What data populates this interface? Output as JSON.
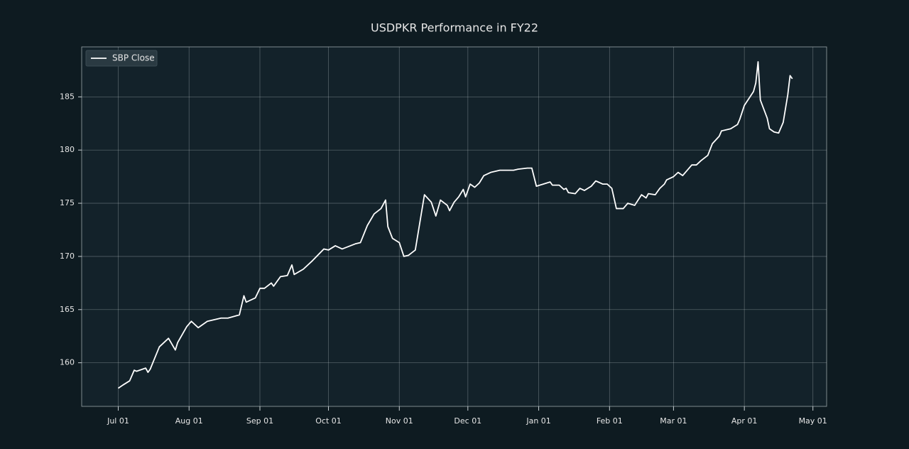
{
  "chart_data": {
    "type": "line",
    "title": "USDPKR Performance in FY22",
    "x": [
      "07-01",
      "07-03",
      "07-06",
      "07-08",
      "07-09",
      "07-13",
      "07-14",
      "07-15",
      "07-19",
      "07-23",
      "07-26",
      "07-27",
      "07-31",
      "08-02",
      "08-05",
      "08-09",
      "08-11",
      "08-15",
      "08-18",
      "08-23",
      "08-25",
      "08-26",
      "08-30",
      "09-01",
      "09-03",
      "09-06",
      "09-07",
      "09-10",
      "09-13",
      "09-15",
      "09-16",
      "09-20",
      "09-24",
      "09-29",
      "10-01",
      "10-04",
      "10-07",
      "10-13",
      "10-15",
      "10-18",
      "10-21",
      "10-24",
      "10-26",
      "10-27",
      "10-29",
      "11-01",
      "11-03",
      "11-05",
      "11-08",
      "11-12",
      "11-15",
      "11-17",
      "11-19",
      "11-22",
      "11-23",
      "11-25",
      "11-27",
      "11-29",
      "11-30",
      "12-02",
      "12-04",
      "12-06",
      "12-08",
      "12-11",
      "12-15",
      "12-21",
      "12-23",
      "12-27",
      "12-29",
      "12-31",
      "01-03",
      "01-06",
      "01-07",
      "01-10",
      "01-12",
      "01-13",
      "01-14",
      "01-17",
      "01-19",
      "01-21",
      "01-24",
      "01-26",
      "01-29",
      "01-31",
      "02-02",
      "02-04",
      "02-07",
      "02-09",
      "02-12",
      "02-15",
      "02-17",
      "02-18",
      "02-21",
      "02-23",
      "02-25",
      "02-26",
      "03-01",
      "03-03",
      "03-05",
      "03-07",
      "03-09",
      "03-11",
      "03-13",
      "03-16",
      "03-18",
      "03-21",
      "03-22",
      "03-26",
      "03-29",
      "03-30",
      "04-01",
      "04-05",
      "04-06",
      "04-07",
      "04-08",
      "04-11",
      "04-12",
      "04-14",
      "04-16",
      "04-18",
      "04-20",
      "04-21",
      "04-22"
    ],
    "series": [
      {
        "name": "SBP Close",
        "color": "#ffffff",
        "values": [
          157.6,
          157.9,
          158.3,
          159.3,
          159.2,
          159.5,
          159.1,
          159.4,
          161.5,
          162.3,
          161.2,
          161.9,
          163.4,
          163.9,
          163.3,
          163.9,
          164.0,
          164.2,
          164.2,
          164.5,
          166.3,
          165.7,
          166.1,
          167.0,
          167.0,
          167.5,
          167.2,
          168.1,
          168.2,
          169.2,
          168.3,
          168.8,
          169.6,
          170.7,
          170.6,
          171.0,
          170.7,
          171.2,
          171.3,
          172.9,
          174.0,
          174.5,
          175.3,
          172.8,
          171.7,
          171.3,
          170.0,
          170.1,
          170.6,
          175.8,
          175.1,
          173.8,
          175.3,
          174.8,
          174.3,
          175.1,
          175.6,
          176.3,
          175.6,
          176.8,
          176.5,
          176.9,
          177.6,
          177.9,
          178.1,
          178.1,
          178.2,
          178.3,
          178.3,
          176.6,
          176.8,
          177.0,
          176.7,
          176.7,
          176.3,
          176.4,
          176.0,
          175.9,
          176.4,
          176.2,
          176.6,
          177.1,
          176.8,
          176.8,
          176.4,
          174.5,
          174.5,
          175.0,
          174.8,
          175.8,
          175.5,
          175.9,
          175.8,
          176.4,
          176.8,
          177.2,
          177.5,
          177.9,
          177.6,
          178.1,
          178.6,
          178.6,
          179.0,
          179.5,
          180.6,
          181.3,
          181.8,
          182.0,
          182.4,
          182.9,
          184.2,
          185.5,
          186.3,
          188.3,
          184.7,
          183.0,
          182.0,
          181.7,
          181.6,
          182.6,
          185.2,
          187.0,
          186.7
        ]
      }
    ],
    "xlim": [
      "06-15",
      "05-07"
    ],
    "xticks": [
      {
        "value": "07-01",
        "label": "Jul 01"
      },
      {
        "value": "08-01",
        "label": "Aug 01"
      },
      {
        "value": "09-01",
        "label": "Sep 01"
      },
      {
        "value": "10-01",
        "label": "Oct 01"
      },
      {
        "value": "11-01",
        "label": "Nov 01"
      },
      {
        "value": "12-01",
        "label": "Dec 01"
      },
      {
        "value": "01-01",
        "label": "Jan 01"
      },
      {
        "value": "02-01",
        "label": "Feb 01"
      },
      {
        "value": "03-01",
        "label": "Mar 01"
      },
      {
        "value": "04-01",
        "label": "Apr 01"
      },
      {
        "value": "05-01",
        "label": "May 01"
      }
    ],
    "ylim": [
      155.9,
      189.7
    ],
    "yticks": [
      160,
      165,
      170,
      175,
      180,
      185
    ],
    "grid": true,
    "legend": "upper left"
  }
}
